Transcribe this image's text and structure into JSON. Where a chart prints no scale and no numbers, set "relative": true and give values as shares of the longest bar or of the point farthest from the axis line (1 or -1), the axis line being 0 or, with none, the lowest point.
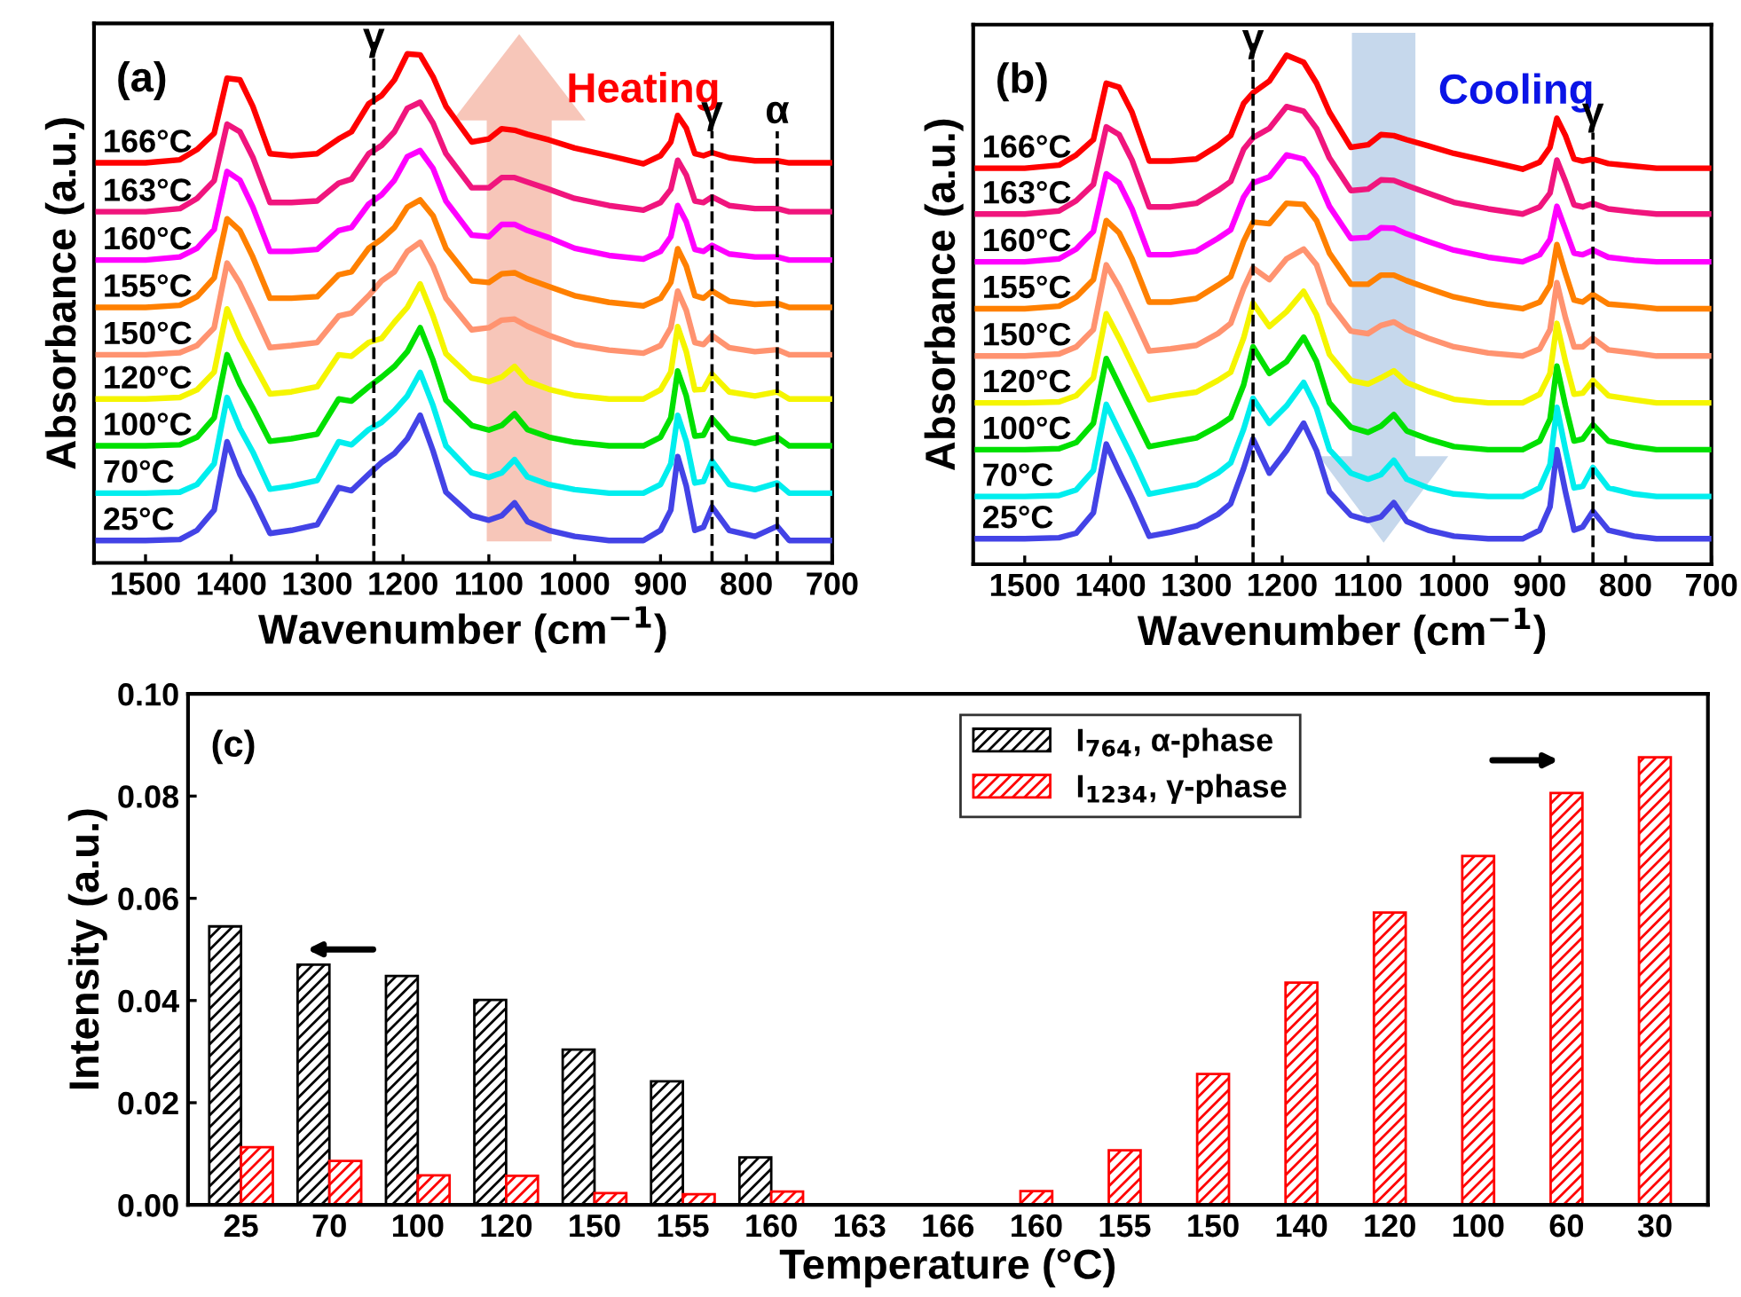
{
  "chart_data": [
    {
      "type": "line",
      "relative": true,
      "tick_labels": "x",
      "xlabel": "Wavenumber (cm$^{−1}$)",
      "ylabel": "Absorbance (a.u.)",
      "annotations": [
        "(a)",
        "Heating"
      ],
      "xlim": [
        1560,
        700
      ],
      "xticks": [
        1500,
        1400,
        1300,
        1200,
        1100,
        1000,
        900,
        800,
        700
      ],
      "x": [
        1555,
        1500,
        1460,
        1440,
        1420,
        1405,
        1390,
        1375,
        1355,
        1330,
        1300,
        1275,
        1260,
        1240,
        1225,
        1210,
        1195,
        1180,
        1165,
        1150,
        1120,
        1100,
        1085,
        1070,
        1055,
        1030,
        1000,
        960,
        920,
        900,
        888,
        880,
        870,
        860,
        850,
        840,
        820,
        790,
        764,
        750,
        700
      ],
      "ref_lines": [
        {
          "axis": "x",
          "value": 1234,
          "label": "γ",
          "line_style": "dashed",
          "color": "#000000"
        },
        {
          "axis": "x",
          "value": 840,
          "label": "γ",
          "line_style": "dashed",
          "color": "#000000"
        },
        {
          "axis": "x",
          "value": 764,
          "label": "α",
          "line_style": "dashed",
          "color": "#000000"
        }
      ],
      "series": [
        {
          "name": "25°C",
          "color": "#4343e6",
          "values": [
            0.044,
            0.044,
            0.046,
            0.064,
            0.104,
            0.238,
            0.174,
            0.128,
            0.058,
            0.064,
            0.075,
            0.148,
            0.142,
            0.174,
            0.197,
            0.215,
            0.244,
            0.29,
            0.22,
            0.139,
            0.093,
            0.084,
            0.093,
            0.118,
            0.081,
            0.064,
            0.052,
            0.044,
            0.044,
            0.064,
            0.104,
            0.209,
            0.151,
            0.064,
            0.07,
            0.11,
            0.064,
            0.052,
            0.072,
            0.044,
            0.044
          ]
        },
        {
          "name": "70°C",
          "color": "#00eeee",
          "values": [
            0.137,
            0.137,
            0.139,
            0.154,
            0.195,
            0.325,
            0.264,
            0.218,
            0.145,
            0.151,
            0.162,
            0.238,
            0.232,
            0.262,
            0.276,
            0.299,
            0.328,
            0.374,
            0.309,
            0.23,
            0.177,
            0.168,
            0.177,
            0.203,
            0.169,
            0.154,
            0.144,
            0.137,
            0.137,
            0.154,
            0.195,
            0.29,
            0.239,
            0.157,
            0.16,
            0.2,
            0.154,
            0.144,
            0.157,
            0.137,
            0.137
          ]
        },
        {
          "name": "100°C",
          "color": "#00e000",
          "values": [
            0.23,
            0.23,
            0.232,
            0.247,
            0.285,
            0.409,
            0.351,
            0.305,
            0.239,
            0.244,
            0.253,
            0.322,
            0.318,
            0.346,
            0.365,
            0.386,
            0.415,
            0.462,
            0.398,
            0.32,
            0.27,
            0.261,
            0.27,
            0.293,
            0.262,
            0.247,
            0.237,
            0.23,
            0.23,
            0.247,
            0.285,
            0.377,
            0.328,
            0.249,
            0.251,
            0.284,
            0.245,
            0.235,
            0.247,
            0.23,
            0.23
          ]
        },
        {
          "name": "120°C",
          "color": "#f5f500",
          "values": [
            0.322,
            0.322,
            0.325,
            0.34,
            0.375,
            0.499,
            0.441,
            0.394,
            0.332,
            0.336,
            0.346,
            0.409,
            0.406,
            0.433,
            0.441,
            0.473,
            0.502,
            0.548,
            0.485,
            0.411,
            0.363,
            0.356,
            0.365,
            0.386,
            0.357,
            0.341,
            0.329,
            0.322,
            0.322,
            0.34,
            0.375,
            0.464,
            0.415,
            0.34,
            0.341,
            0.371,
            0.336,
            0.328,
            0.336,
            0.322,
            0.322
          ]
        },
        {
          "name": "150°C",
          "color": "#ff9370",
          "values": [
            0.409,
            0.409,
            0.413,
            0.427,
            0.462,
            0.589,
            0.549,
            0.496,
            0.423,
            0.427,
            0.433,
            0.485,
            0.491,
            0.525,
            0.554,
            0.572,
            0.612,
            0.63,
            0.583,
            0.52,
            0.458,
            0.462,
            0.477,
            0.479,
            0.465,
            0.447,
            0.429,
            0.418,
            0.412,
            0.427,
            0.462,
            0.534,
            0.496,
            0.433,
            0.429,
            0.447,
            0.423,
            0.415,
            0.419,
            0.409,
            0.409
          ]
        },
        {
          "name": "155°C",
          "color": "#ff8000",
          "values": [
            0.502,
            0.502,
            0.506,
            0.523,
            0.56,
            0.676,
            0.653,
            0.601,
            0.52,
            0.52,
            0.523,
            0.566,
            0.572,
            0.618,
            0.636,
            0.659,
            0.699,
            0.713,
            0.682,
            0.618,
            0.554,
            0.551,
            0.568,
            0.57,
            0.558,
            0.543,
            0.525,
            0.512,
            0.505,
            0.52,
            0.551,
            0.617,
            0.583,
            0.525,
            0.52,
            0.534,
            0.514,
            0.508,
            0.51,
            0.502,
            0.502
          ]
        },
        {
          "name": "160°C",
          "color": "#ff00ff",
          "values": [
            0.595,
            0.595,
            0.601,
            0.618,
            0.655,
            0.769,
            0.752,
            0.699,
            0.612,
            0.612,
            0.616,
            0.653,
            0.659,
            0.705,
            0.723,
            0.752,
            0.798,
            0.81,
            0.775,
            0.711,
            0.644,
            0.641,
            0.665,
            0.665,
            0.653,
            0.639,
            0.618,
            0.604,
            0.597,
            0.612,
            0.641,
            0.702,
            0.67,
            0.616,
            0.612,
            0.624,
            0.607,
            0.601,
            0.601,
            0.595,
            0.595
          ]
        },
        {
          "name": "163°C",
          "color": "#f0157d",
          "values": [
            0.69,
            0.69,
            0.696,
            0.716,
            0.751,
            0.862,
            0.847,
            0.797,
            0.708,
            0.708,
            0.711,
            0.746,
            0.754,
            0.804,
            0.82,
            0.847,
            0.893,
            0.905,
            0.864,
            0.804,
            0.737,
            0.737,
            0.757,
            0.757,
            0.748,
            0.734,
            0.716,
            0.702,
            0.693,
            0.708,
            0.734,
            0.791,
            0.762,
            0.711,
            0.708,
            0.719,
            0.702,
            0.696,
            0.696,
            0.69,
            0.69
          ]
        },
        {
          "name": "166°C",
          "color": "#ff0000",
          "values": [
            0.786,
            0.786,
            0.792,
            0.812,
            0.844,
            0.952,
            0.949,
            0.897,
            0.804,
            0.8,
            0.804,
            0.833,
            0.847,
            0.902,
            0.918,
            0.949,
            1.0,
            0.998,
            0.955,
            0.897,
            0.827,
            0.833,
            0.853,
            0.85,
            0.842,
            0.831,
            0.815,
            0.8,
            0.784,
            0.8,
            0.827,
            0.879,
            0.854,
            0.804,
            0.8,
            0.806,
            0.796,
            0.79,
            0.79,
            0.786,
            0.786
          ]
        }
      ]
    },
    {
      "type": "line",
      "relative": true,
      "tick_labels": "x",
      "xlabel": "Wavenumber (cm$^{−1}$)",
      "ylabel": "Absorbance (a.u.)",
      "annotations": [
        "(b)",
        "Cooling"
      ],
      "xlim": [
        1560,
        700
      ],
      "xticks": [
        1500,
        1400,
        1300,
        1200,
        1100,
        1000,
        900,
        800,
        700
      ],
      "x": [
        1555,
        1500,
        1460,
        1440,
        1420,
        1405,
        1390,
        1375,
        1355,
        1330,
        1300,
        1275,
        1260,
        1245,
        1234,
        1215,
        1195,
        1175,
        1160,
        1145,
        1120,
        1100,
        1085,
        1070,
        1055,
        1030,
        1000,
        960,
        920,
        900,
        888,
        880,
        870,
        860,
        850,
        838,
        820,
        790,
        764,
        750,
        700
      ],
      "ref_lines": [
        {
          "axis": "x",
          "value": 1234,
          "label": "γ",
          "line_style": "dashed",
          "color": "#000000"
        },
        {
          "axis": "x",
          "value": 838,
          "label": "γ",
          "line_style": "dashed",
          "color": "#000000"
        }
      ],
      "series": [
        {
          "name": "25°C",
          "color": "#4343e6",
          "values": [
            0.05,
            0.05,
            0.052,
            0.061,
            0.101,
            0.236,
            0.182,
            0.13,
            0.055,
            0.063,
            0.075,
            0.098,
            0.119,
            0.188,
            0.246,
            0.179,
            0.223,
            0.277,
            0.223,
            0.142,
            0.096,
            0.086,
            0.093,
            0.121,
            0.084,
            0.067,
            0.055,
            0.05,
            0.05,
            0.067,
            0.113,
            0.225,
            0.142,
            0.067,
            0.073,
            0.104,
            0.067,
            0.055,
            0.05,
            0.05,
            0.05
          ]
        },
        {
          "name": "70°C",
          "color": "#00eeee",
          "values": [
            0.133,
            0.133,
            0.135,
            0.146,
            0.184,
            0.314,
            0.262,
            0.211,
            0.138,
            0.146,
            0.156,
            0.179,
            0.199,
            0.265,
            0.326,
            0.277,
            0.311,
            0.357,
            0.306,
            0.225,
            0.179,
            0.167,
            0.176,
            0.204,
            0.167,
            0.15,
            0.138,
            0.133,
            0.133,
            0.15,
            0.196,
            0.308,
            0.225,
            0.15,
            0.153,
            0.19,
            0.15,
            0.138,
            0.133,
            0.133,
            0.133
          ]
        },
        {
          "name": "100°C",
          "color": "#00e000",
          "values": [
            0.225,
            0.225,
            0.227,
            0.239,
            0.277,
            0.404,
            0.352,
            0.3,
            0.231,
            0.239,
            0.248,
            0.271,
            0.288,
            0.352,
            0.427,
            0.375,
            0.398,
            0.446,
            0.398,
            0.317,
            0.269,
            0.259,
            0.271,
            0.294,
            0.262,
            0.246,
            0.231,
            0.225,
            0.225,
            0.242,
            0.285,
            0.389,
            0.311,
            0.242,
            0.246,
            0.274,
            0.242,
            0.231,
            0.225,
            0.225,
            0.225
          ]
        },
        {
          "name": "120°C",
          "color": "#f5f500",
          "values": [
            0.317,
            0.317,
            0.319,
            0.331,
            0.366,
            0.492,
            0.444,
            0.392,
            0.323,
            0.331,
            0.338,
            0.361,
            0.377,
            0.444,
            0.513,
            0.467,
            0.496,
            0.536,
            0.49,
            0.412,
            0.361,
            0.354,
            0.366,
            0.38,
            0.357,
            0.34,
            0.324,
            0.317,
            0.317,
            0.334,
            0.375,
            0.473,
            0.398,
            0.334,
            0.336,
            0.361,
            0.331,
            0.323,
            0.317,
            0.317,
            0.317
          ]
        },
        {
          "name": "150°C",
          "color": "#ff9370",
          "values": [
            0.409,
            0.409,
            0.413,
            0.427,
            0.461,
            0.588,
            0.545,
            0.492,
            0.419,
            0.423,
            0.43,
            0.453,
            0.473,
            0.542,
            0.582,
            0.559,
            0.6,
            0.619,
            0.588,
            0.513,
            0.458,
            0.453,
            0.469,
            0.476,
            0.461,
            0.444,
            0.427,
            0.415,
            0.409,
            0.423,
            0.461,
            0.553,
            0.484,
            0.427,
            0.427,
            0.444,
            0.421,
            0.415,
            0.409,
            0.409,
            0.409
          ]
        },
        {
          "name": "155°C",
          "color": "#ff8000",
          "values": [
            0.502,
            0.502,
            0.507,
            0.525,
            0.559,
            0.675,
            0.651,
            0.6,
            0.515,
            0.515,
            0.522,
            0.548,
            0.565,
            0.634,
            0.672,
            0.669,
            0.709,
            0.707,
            0.675,
            0.611,
            0.55,
            0.55,
            0.568,
            0.568,
            0.557,
            0.542,
            0.525,
            0.511,
            0.502,
            0.515,
            0.548,
            0.628,
            0.571,
            0.519,
            0.515,
            0.53,
            0.511,
            0.507,
            0.502,
            0.502,
            0.502
          ]
        },
        {
          "name": "160°C",
          "color": "#ff00ff",
          "values": [
            0.594,
            0.594,
            0.6,
            0.619,
            0.654,
            0.767,
            0.749,
            0.698,
            0.608,
            0.608,
            0.615,
            0.64,
            0.657,
            0.721,
            0.749,
            0.761,
            0.804,
            0.796,
            0.761,
            0.703,
            0.64,
            0.642,
            0.661,
            0.66,
            0.649,
            0.634,
            0.617,
            0.603,
            0.594,
            0.608,
            0.638,
            0.703,
            0.657,
            0.611,
            0.608,
            0.617,
            0.603,
            0.597,
            0.594,
            0.594,
            0.594
          ]
        },
        {
          "name": "163°C",
          "color": "#f0157d",
          "values": [
            0.688,
            0.688,
            0.694,
            0.714,
            0.746,
            0.859,
            0.844,
            0.794,
            0.702,
            0.702,
            0.709,
            0.734,
            0.752,
            0.815,
            0.838,
            0.856,
            0.899,
            0.89,
            0.856,
            0.798,
            0.734,
            0.737,
            0.755,
            0.754,
            0.744,
            0.729,
            0.711,
            0.698,
            0.688,
            0.702,
            0.729,
            0.794,
            0.752,
            0.706,
            0.702,
            0.709,
            0.698,
            0.692,
            0.688,
            0.688,
            0.688
          ]
        },
        {
          "name": "166°C",
          "color": "#ff0000",
          "values": [
            0.778,
            0.778,
            0.784,
            0.804,
            0.834,
            0.945,
            0.937,
            0.888,
            0.792,
            0.792,
            0.796,
            0.822,
            0.842,
            0.905,
            0.926,
            0.949,
            1.0,
            0.986,
            0.945,
            0.888,
            0.819,
            0.824,
            0.844,
            0.842,
            0.834,
            0.822,
            0.807,
            0.792,
            0.776,
            0.79,
            0.819,
            0.876,
            0.842,
            0.796,
            0.792,
            0.796,
            0.787,
            0.782,
            0.778,
            0.778,
            0.778
          ]
        }
      ]
    },
    {
      "type": "bar",
      "xlabel": "Temperature (°C)",
      "ylabel": "Intensity (a.u.)",
      "annotations": [
        "(c)"
      ],
      "legend": "top",
      "categories": [
        "25",
        "70",
        "100",
        "120",
        "150",
        "155",
        "160",
        "163",
        "166",
        "160",
        "155",
        "150",
        "140",
        "120",
        "100",
        "60",
        "30"
      ],
      "ylim": [
        0,
        0.1
      ],
      "yticks": [
        {
          "value": 0,
          "label": "0.00"
        },
        {
          "value": 0.02,
          "label": "0.02"
        },
        {
          "value": 0.04,
          "label": "0.04"
        },
        {
          "value": 0.06,
          "label": "0.06"
        },
        {
          "value": 0.08,
          "label": "0.08"
        },
        {
          "value": 0.1,
          "label": "0.10"
        }
      ],
      "series": [
        {
          "name": "I$_{764}$, α-phase",
          "color": "#000000",
          "values": [
            0.0545,
            0.047,
            0.0448,
            0.0401,
            0.0304,
            0.0242,
            0.0093,
            null,
            null,
            null,
            null,
            null,
            null,
            null,
            null,
            null,
            null
          ]
        },
        {
          "name": "I$_{1234}$, γ-phase",
          "color": "#ff0000",
          "values": [
            0.0113,
            0.0086,
            0.0058,
            0.0057,
            0.0023,
            0.0021,
            0.0026,
            null,
            null,
            0.0027,
            0.0107,
            0.0256,
            0.0435,
            0.0572,
            0.0683,
            0.0806,
            0.0876
          ]
        }
      ]
    }
  ]
}
